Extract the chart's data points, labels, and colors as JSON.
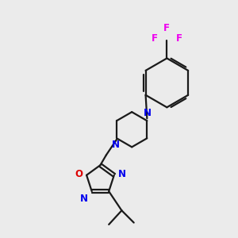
{
  "background_color": "#ebebeb",
  "bond_color": "#1a1a1a",
  "nitrogen_color": "#0000ee",
  "oxygen_color": "#dd0000",
  "fluorine_color": "#ee00ee",
  "line_width": 1.6,
  "font_size": 8.5,
  "fig_size": [
    3.0,
    3.0
  ],
  "dpi": 100,
  "xlim": [
    0,
    10
  ],
  "ylim": [
    0,
    10
  ]
}
